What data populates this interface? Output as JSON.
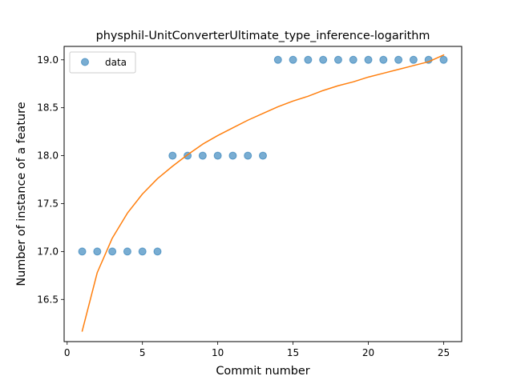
{
  "chart_data": {
    "type": "scatter",
    "title": "physphil-UnitConverterUltimate_type_inference-logarithm",
    "xlabel": "Commit number",
    "ylabel": "Number of instance of a feature",
    "xlim": [
      -0.2,
      26.2
    ],
    "ylim": [
      16.06,
      19.14
    ],
    "xticks": [
      0,
      5,
      10,
      15,
      20,
      25
    ],
    "yticks": [
      16.5,
      17.0,
      17.5,
      18.0,
      18.5,
      19.0
    ],
    "xtick_labels": [
      "0",
      "5",
      "10",
      "15",
      "20",
      "25"
    ],
    "ytick_labels": [
      "16.5",
      "17.0",
      "17.5",
      "18.0",
      "18.5",
      "19.0"
    ],
    "legend_position": "top-left",
    "grid": false,
    "series": [
      {
        "name": "data",
        "kind": "points",
        "color": "#1f77b4",
        "x": [
          1,
          2,
          3,
          4,
          5,
          6,
          7,
          8,
          9,
          10,
          11,
          12,
          13,
          14,
          15,
          16,
          17,
          18,
          19,
          20,
          21,
          22,
          23,
          24,
          25
        ],
        "y": [
          17,
          17,
          17,
          17,
          17,
          17,
          18,
          18,
          18,
          18,
          18,
          18,
          18,
          19,
          19,
          19,
          19,
          19,
          19,
          19,
          19,
          19,
          19,
          19,
          19
        ]
      },
      {
        "kind": "line",
        "color": "#ff7f0e",
        "x": [
          1,
          2,
          3,
          4,
          5,
          6,
          7,
          8,
          9,
          10,
          11,
          12,
          13,
          14,
          15,
          16,
          17,
          18,
          19,
          20,
          21,
          22,
          23,
          24,
          25
        ],
        "y": [
          16.17,
          16.78,
          17.14,
          17.4,
          17.6,
          17.76,
          17.89,
          18.01,
          18.12,
          18.21,
          18.29,
          18.37,
          18.44,
          18.51,
          18.57,
          18.62,
          18.68,
          18.73,
          18.77,
          18.82,
          18.86,
          18.9,
          18.94,
          18.98,
          19.05
        ]
      }
    ]
  }
}
